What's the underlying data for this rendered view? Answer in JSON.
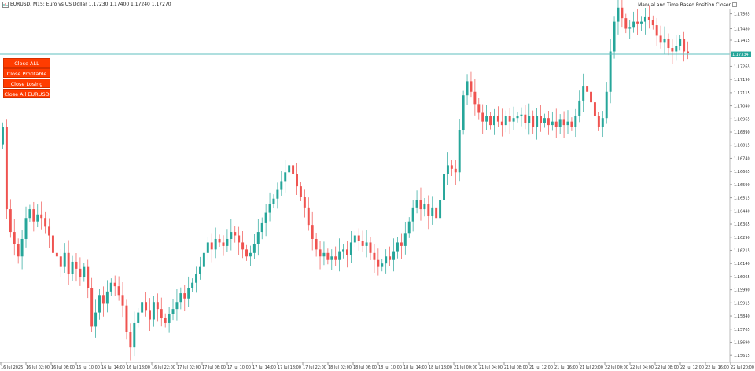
{
  "header": {
    "symbol_text": "EURUSD, M15:  Euro vs US Dollar  1.17230 1.17400 1.17240 1.17270",
    "ea_label": "Manual and Time Based Position Closer",
    "icons": [
      "chart-window-icon",
      "ea-settings-icon"
    ]
  },
  "buttons": {
    "close_all": "Close ALL",
    "close_profitable": "Close Profitable",
    "close_losing": "Close Losing",
    "close_all_symbol": "Close All EURUSD"
  },
  "colors": {
    "bull": "#26a69a",
    "bear": "#ef5350",
    "line": "#5fbfbf",
    "button": "#ff3c00"
  },
  "current_price": "1.17334",
  "chart_data": {
    "type": "candlestick",
    "x_ticks": [
      "16 Jul 2025",
      "16 Jul 02:00",
      "16 Jul 06:00",
      "16 Jul 10:00",
      "16 Jul 14:00",
      "16 Jul 18:00",
      "16 Jul 22:00",
      "17 Jul 02:00",
      "17 Jul 06:00",
      "17 Jul 10:00",
      "17 Jul 14:00",
      "17 Jul 18:00",
      "17 Jul 22:00",
      "18 Jul 02:00",
      "18 Jul 06:00",
      "18 Jul 10:00",
      "18 Jul 14:00",
      "18 Jul 18:00",
      "21 Jul 00:00",
      "21 Jul 04:00",
      "21 Jul 08:00",
      "21 Jul 12:00",
      "21 Jul 16:00",
      "21 Jul 20:00",
      "22 Jul 00:00",
      "22 Jul 04:00",
      "22 Jul 08:00",
      "22 Jul 12:00",
      "22 Jul 16:00",
      "22 Jul 20:00",
      "23 Jul 00:00"
    ],
    "y_ticks": [
      "1.17565",
      "1.17480",
      "1.17415",
      "1.17340",
      "1.17265",
      "1.17190",
      "1.17115",
      "1.17040",
      "1.16965",
      "1.16890",
      "1.16815",
      "1.16740",
      "1.16665",
      "1.16590",
      "1.16515",
      "1.16440",
      "1.16365",
      "1.16290",
      "1.16215",
      "1.16140",
      "1.16065",
      "1.15990",
      "1.15915",
      "1.15840",
      "1.15765",
      "1.15690",
      "1.15615"
    ],
    "y_range": [
      1.1558,
      1.1759
    ],
    "closes": [
      1.1692,
      1.1645,
      1.1632,
      1.1625,
      1.1618,
      1.1628,
      1.164,
      1.1645,
      1.1638,
      1.1642,
      1.164,
      1.1635,
      1.163,
      1.162,
      1.1618,
      1.1612,
      1.162,
      1.1608,
      1.1615,
      1.1611,
      1.1606,
      1.1612,
      1.16,
      1.1578,
      1.1586,
      1.1596,
      1.1591,
      1.1598,
      1.1603,
      1.1601,
      1.1596,
      1.159,
      1.1575,
      1.1566,
      1.158,
      1.1586,
      1.1592,
      1.1587,
      1.1582,
      1.1592,
      1.1588,
      1.1583,
      1.158,
      1.1585,
      1.1588,
      1.1592,
      1.1597,
      1.1594,
      1.16,
      1.1603,
      1.1608,
      1.1612,
      1.162,
      1.1626,
      1.1622,
      1.1628,
      1.1626,
      1.1624,
      1.1628,
      1.1632,
      1.163,
      1.1626,
      1.1622,
      1.1618,
      1.162,
      1.1625,
      1.1632,
      1.1637,
      1.1643,
      1.1648,
      1.1651,
      1.1656,
      1.1661,
      1.1666,
      1.167,
      1.1665,
      1.1658,
      1.1652,
      1.1646,
      1.1636,
      1.1628,
      1.1622,
      1.1618,
      1.162,
      1.1616,
      1.1618,
      1.1616,
      1.1621,
      1.1622,
      1.1619,
      1.1626,
      1.163,
      1.1627,
      1.1624,
      1.1626,
      1.162,
      1.1616,
      1.1612,
      1.1614,
      1.1618,
      1.1616,
      1.1621,
      1.1626,
      1.1624,
      1.1631,
      1.1638,
      1.1646,
      1.165,
      1.1645,
      1.1648,
      1.1641,
      1.1646,
      1.164,
      1.165,
      1.1665,
      1.167,
      1.1668,
      1.1666,
      1.169,
      1.171,
      1.1718,
      1.1712,
      1.1705,
      1.17,
      1.1695,
      1.1698,
      1.1693,
      1.1698,
      1.1695,
      1.1693,
      1.1698,
      1.1695,
      1.1697,
      1.1698,
      1.1699,
      1.1694,
      1.1698,
      1.1692,
      1.1698,
      1.1694,
      1.1697,
      1.1693,
      1.1695,
      1.1692,
      1.1696,
      1.1693,
      1.1695,
      1.1692,
      1.1698,
      1.1707,
      1.1715,
      1.1712,
      1.1706,
      1.1698,
      1.1692,
      1.1697,
      1.1712,
      1.1735,
      1.1752,
      1.176,
      1.1754,
      1.1748,
      1.1749,
      1.1752,
      1.1751,
      1.1752,
      1.1755,
      1.1753,
      1.175,
      1.1744,
      1.174,
      1.1742,
      1.1737,
      1.1735,
      1.1738,
      1.1742,
      1.1735,
      1.1734
    ]
  }
}
